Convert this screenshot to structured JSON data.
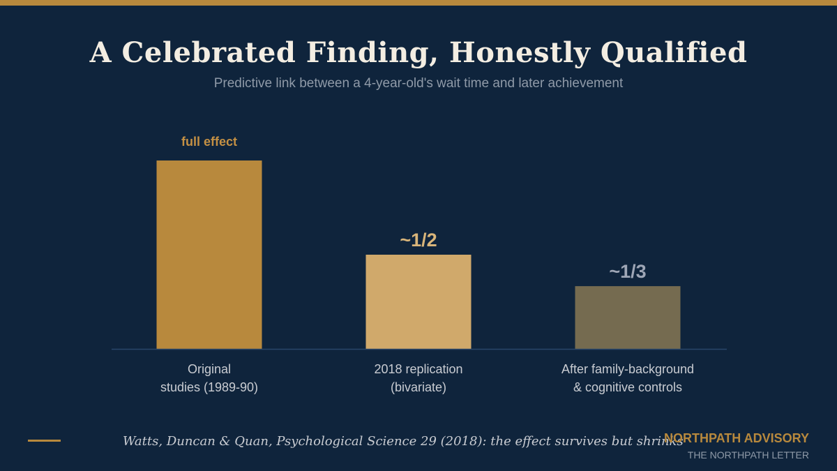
{
  "slide": {
    "title": "A Celebrated Finding, Honestly Qualified",
    "subtitle": "Predictive link between a 4-year-old's wait time and later achievement",
    "source_note": "Watts, Duncan & Quan, Psychological Science 29 (2018): the effect survives but shrinks",
    "brand_name": "NORTHPATH ADVISORY",
    "brand_sub": "THE NORTHPATH LETTER",
    "accent_color": "#b8893d",
    "background_color": "#0f243c"
  },
  "chart_data": {
    "type": "bar",
    "title": "A Celebrated Finding, Honestly Qualified",
    "subtitle": "Predictive link between a 4-year-old's wait time and later achievement",
    "xlabel": "",
    "ylabel": "",
    "ylim": [
      0,
      1
    ],
    "grid": false,
    "legend": "none",
    "categories": [
      [
        "Original",
        "studies (1989-90)"
      ],
      [
        "2018 replication",
        "(bivariate)"
      ],
      [
        "After family-background",
        "& cognitive controls"
      ]
    ],
    "values": [
      1.0,
      0.5,
      0.333
    ],
    "data_labels": [
      "full effect",
      "~1/2",
      "~1/3"
    ],
    "bar_colors": [
      "#b8893d",
      "#d0a96b",
      "#756b50"
    ],
    "label_colors": [
      "#c49044",
      "#d9b57a",
      "#9ea6b6"
    ]
  }
}
